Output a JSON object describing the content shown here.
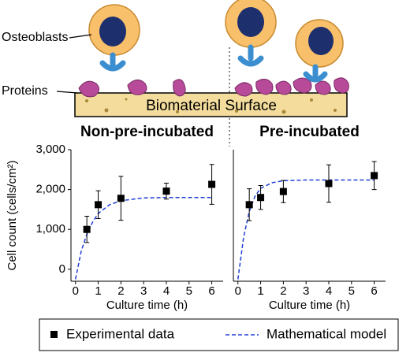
{
  "illustration": {
    "cell_label": "Osteoblasts",
    "protein_label": "Proteins",
    "surface_label": "Biomaterial Surface"
  },
  "chart_data": [
    {
      "type": "scatter-model",
      "title": "Non-pre-incubated",
      "xlabel": "Culture time (h)",
      "ylabel": "Cell count (cells/cm²)",
      "xlim": [
        -0.2,
        6.5
      ],
      "xticks": [
        0,
        1,
        2,
        3,
        4,
        5,
        6
      ],
      "ylim": [
        -300,
        3000
      ],
      "yticks": [
        0,
        {
          "value": 1000,
          "label": "1,000"
        },
        {
          "value": 2000,
          "label": "2,000"
        },
        {
          "value": 3000,
          "label": "3,000"
        }
      ],
      "series": [
        {
          "name": "Experimental data",
          "color": "#000000",
          "x": [
            0.5,
            1,
            2,
            4,
            6
          ],
          "values": [
            1000,
            1620,
            1780,
            1960,
            2130
          ],
          "errors": [
            330,
            350,
            550,
            200,
            500
          ]
        },
        {
          "name": "Mathematical model",
          "color": "#1f3fd6",
          "x": [
            0,
            0.25,
            0.5,
            0.75,
            1,
            1.5,
            2,
            3,
            4,
            5,
            6
          ],
          "values": [
            -250,
            450,
            880,
            1180,
            1400,
            1620,
            1720,
            1790,
            1800,
            1800,
            1800
          ]
        }
      ]
    },
    {
      "type": "scatter-model",
      "title": "Pre-incubated",
      "xlabel": "Culture time (h)",
      "xlim": [
        -0.2,
        6.5
      ],
      "xticks": [
        0,
        1,
        2,
        3,
        4,
        5,
        6
      ],
      "ylim": [
        -300,
        3000
      ],
      "series": [
        {
          "color": "#000000",
          "x": [
            0.5,
            1,
            2,
            4,
            6
          ],
          "values": [
            1620,
            1800,
            1950,
            2150,
            2350
          ],
          "errors": [
            400,
            300,
            280,
            470,
            350
          ]
        },
        {
          "color": "#1f3fd6",
          "x": [
            0,
            0.25,
            0.5,
            0.75,
            1,
            1.5,
            2,
            3,
            4,
            5,
            6
          ],
          "values": [
            -250,
            800,
            1450,
            1830,
            2030,
            2170,
            2220,
            2240,
            2240,
            2240,
            2240
          ]
        }
      ]
    }
  ]
}
